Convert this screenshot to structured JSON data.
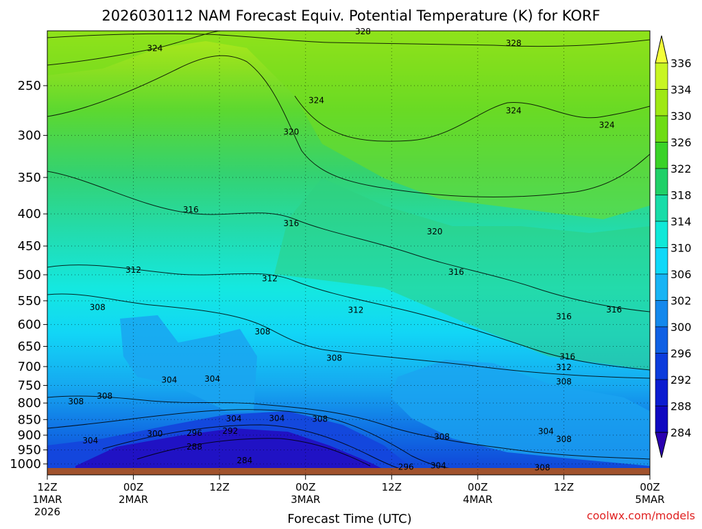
{
  "chart_data": {
    "type": "heatmap",
    "title": "2026030112 NAM Forecast Equiv. Potential Temperature (K) for KORF",
    "xlabel": "Forecast Time (UTC)",
    "ylabel": "",
    "units": "K",
    "credit": "coolwx.com/models",
    "x_range_hours": [
      0,
      84
    ],
    "y_scale": "log-pressure",
    "y_range": [
      1000,
      200
    ],
    "x_ticks": [
      {
        "hour": 0,
        "label": "12Z",
        "sub": "1MAR",
        "year": "2026"
      },
      {
        "hour": 12,
        "label": "00Z",
        "sub": "2MAR"
      },
      {
        "hour": 24,
        "label": "12Z",
        "sub": ""
      },
      {
        "hour": 36,
        "label": "00Z",
        "sub": "3MAR"
      },
      {
        "hour": 48,
        "label": "12Z",
        "sub": ""
      },
      {
        "hour": 60,
        "label": "00Z",
        "sub": "4MAR"
      },
      {
        "hour": 72,
        "label": "12Z",
        "sub": ""
      },
      {
        "hour": 84,
        "label": "00Z",
        "sub": "5MAR"
      }
    ],
    "y_ticks": [
      250,
      300,
      350,
      400,
      450,
      500,
      550,
      600,
      650,
      700,
      750,
      800,
      850,
      900,
      950,
      1000
    ],
    "colorbar": {
      "labels": [
        336,
        334,
        330,
        326,
        322,
        318,
        314,
        310,
        306,
        302,
        300,
        296,
        292,
        288,
        284
      ],
      "colors": [
        "#f4ff3a",
        "#c8f522",
        "#9fe814",
        "#6edc14",
        "#3ad228",
        "#20d068",
        "#18dca8",
        "#10e8d8",
        "#10d8f8",
        "#18b4f4",
        "#1488ec",
        "#1060e4",
        "#0c3cdc",
        "#0c1cd0",
        "#1008c0",
        "#2a00b0"
      ]
    },
    "contour_labels": [
      {
        "text": "328",
        "hour": 44,
        "p": 205
      },
      {
        "text": "328",
        "hour": 65,
        "p": 214
      },
      {
        "text": "324",
        "hour": 15,
        "p": 218
      },
      {
        "text": "324",
        "hour": 37.5,
        "p": 264
      },
      {
        "text": "324",
        "hour": 65,
        "p": 274
      },
      {
        "text": "324",
        "hour": 78,
        "p": 289
      },
      {
        "text": "320",
        "hour": 34,
        "p": 296
      },
      {
        "text": "320",
        "hour": 54,
        "p": 427
      },
      {
        "text": "316",
        "hour": 20,
        "p": 394
      },
      {
        "text": "316",
        "hour": 34,
        "p": 414
      },
      {
        "text": "316",
        "hour": 57,
        "p": 495
      },
      {
        "text": "316",
        "hour": 72,
        "p": 583
      },
      {
        "text": "316",
        "hour": 79,
        "p": 568
      },
      {
        "text": "316",
        "hour": 72.5,
        "p": 675
      },
      {
        "text": "312",
        "hour": 12,
        "p": 491
      },
      {
        "text": "312",
        "hour": 31,
        "p": 507
      },
      {
        "text": "312",
        "hour": 43,
        "p": 569
      },
      {
        "text": "312",
        "hour": 72,
        "p": 702
      },
      {
        "text": "308",
        "hour": 7,
        "p": 563
      },
      {
        "text": "308",
        "hour": 30,
        "p": 616
      },
      {
        "text": "308",
        "hour": 40,
        "p": 678
      },
      {
        "text": "308",
        "hour": 8,
        "p": 780
      },
      {
        "text": "308",
        "hour": 4,
        "p": 796
      },
      {
        "text": "308",
        "hour": 38,
        "p": 848
      },
      {
        "text": "308",
        "hour": 55,
        "p": 905
      },
      {
        "text": "308",
        "hour": 72,
        "p": 740
      },
      {
        "text": "308",
        "hour": 72,
        "p": 913
      },
      {
        "text": "308",
        "hour": 69,
        "p": 1014
      },
      {
        "text": "304",
        "hour": 17,
        "p": 735
      },
      {
        "text": "304",
        "hour": 23,
        "p": 732
      },
      {
        "text": "304",
        "hour": 26,
        "p": 847
      },
      {
        "text": "304",
        "hour": 32,
        "p": 846
      },
      {
        "text": "304",
        "hour": 6,
        "p": 918
      },
      {
        "text": "304",
        "hour": 69.5,
        "p": 887
      },
      {
        "text": "304",
        "hour": 54.5,
        "p": 1006
      },
      {
        "text": "300",
        "hour": 15,
        "p": 895
      },
      {
        "text": "296",
        "hour": 20.5,
        "p": 893
      },
      {
        "text": "296",
        "hour": 50,
        "p": 1011
      },
      {
        "text": "292",
        "hour": 25.5,
        "p": 886
      },
      {
        "text": "288",
        "hour": 20.5,
        "p": 939
      },
      {
        "text": "284",
        "hour": 27.5,
        "p": 988
      }
    ]
  }
}
